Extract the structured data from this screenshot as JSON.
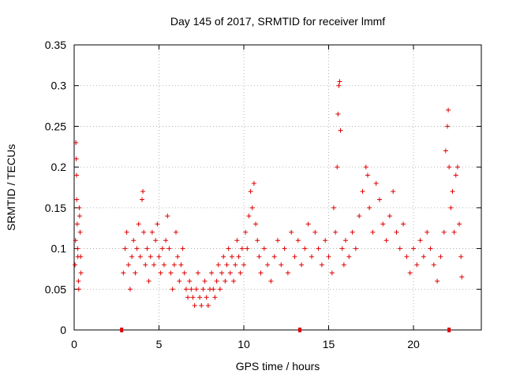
{
  "chart_data": {
    "type": "scatter",
    "title": "Day 145 of 2017, SRMTID for receiver lmmf",
    "xlabel": "GPS time / hours",
    "ylabel": "SRMTID / TECUs",
    "xlim": [
      0,
      24
    ],
    "ylim": [
      0,
      0.35
    ],
    "xticks": [
      0,
      5,
      10,
      15,
      20
    ],
    "xtick_labels": [
      "0",
      "5",
      "10",
      "15",
      "20"
    ],
    "yticks": [
      0,
      0.05,
      0.1,
      0.15,
      0.2,
      0.25,
      0.3,
      0.35
    ],
    "ytick_labels": [
      "0",
      "0.05",
      "0.1",
      "0.15",
      "0.2",
      "0.25",
      "0.3",
      "0.35"
    ],
    "grid": true,
    "marker": "plus",
    "color": "#e00000",
    "series": [
      {
        "name": "SRMTID",
        "points": [
          [
            0.05,
            0.08
          ],
          [
            0.08,
            0.11
          ],
          [
            0.1,
            0.23
          ],
          [
            0.12,
            0.21
          ],
          [
            0.14,
            0.19
          ],
          [
            0.15,
            0.16
          ],
          [
            0.18,
            0.13
          ],
          [
            0.2,
            0.1
          ],
          [
            0.22,
            0.09
          ],
          [
            0.25,
            0.06
          ],
          [
            0.27,
            0.05
          ],
          [
            0.3,
            0.15
          ],
          [
            0.32,
            0.14
          ],
          [
            0.35,
            0.12
          ],
          [
            0.38,
            0.09
          ],
          [
            0.4,
            0.07
          ],
          [
            2.8,
            0.0
          ],
          [
            13.3,
            0.0
          ],
          [
            22.1,
            0.0
          ],
          [
            2.9,
            0.07
          ],
          [
            3.0,
            0.1
          ],
          [
            3.1,
            0.12
          ],
          [
            3.2,
            0.08
          ],
          [
            3.3,
            0.05
          ],
          [
            3.4,
            0.09
          ],
          [
            3.5,
            0.11
          ],
          [
            3.6,
            0.07
          ],
          [
            3.7,
            0.1
          ],
          [
            3.8,
            0.13
          ],
          [
            3.9,
            0.09
          ],
          [
            4.0,
            0.16
          ],
          [
            4.05,
            0.17
          ],
          [
            4.1,
            0.12
          ],
          [
            4.2,
            0.08
          ],
          [
            4.3,
            0.1
          ],
          [
            4.4,
            0.06
          ],
          [
            4.5,
            0.09
          ],
          [
            4.6,
            0.12
          ],
          [
            4.7,
            0.08
          ],
          [
            4.8,
            0.11
          ],
          [
            4.9,
            0.13
          ],
          [
            5.0,
            0.09
          ],
          [
            5.1,
            0.07
          ],
          [
            5.2,
            0.1
          ],
          [
            5.3,
            0.08
          ],
          [
            5.4,
            0.11
          ],
          [
            5.5,
            0.14
          ],
          [
            5.6,
            0.1
          ],
          [
            5.7,
            0.07
          ],
          [
            5.8,
            0.05
          ],
          [
            5.9,
            0.08
          ],
          [
            6.0,
            0.12
          ],
          [
            6.1,
            0.09
          ],
          [
            6.2,
            0.06
          ],
          [
            6.3,
            0.08
          ],
          [
            6.4,
            0.1
          ],
          [
            6.5,
            0.07
          ],
          [
            6.6,
            0.05
          ],
          [
            6.7,
            0.04
          ],
          [
            6.8,
            0.06
          ],
          [
            6.9,
            0.05
          ],
          [
            7.0,
            0.04
          ],
          [
            7.1,
            0.03
          ],
          [
            7.2,
            0.05
          ],
          [
            7.3,
            0.07
          ],
          [
            7.4,
            0.04
          ],
          [
            7.5,
            0.03
          ],
          [
            7.6,
            0.05
          ],
          [
            7.7,
            0.06
          ],
          [
            7.8,
            0.04
          ],
          [
            7.9,
            0.03
          ],
          [
            8.0,
            0.05
          ],
          [
            8.1,
            0.07
          ],
          [
            8.2,
            0.05
          ],
          [
            8.3,
            0.04
          ],
          [
            8.4,
            0.06
          ],
          [
            8.5,
            0.08
          ],
          [
            8.6,
            0.05
          ],
          [
            8.7,
            0.07
          ],
          [
            8.8,
            0.09
          ],
          [
            8.9,
            0.06
          ],
          [
            9.0,
            0.08
          ],
          [
            9.1,
            0.1
          ],
          [
            9.2,
            0.07
          ],
          [
            9.3,
            0.09
          ],
          [
            9.4,
            0.06
          ],
          [
            9.5,
            0.08
          ],
          [
            9.6,
            0.11
          ],
          [
            9.7,
            0.09
          ],
          [
            9.8,
            0.07
          ],
          [
            9.9,
            0.1
          ],
          [
            10.0,
            0.08
          ],
          [
            10.1,
            0.12
          ],
          [
            10.2,
            0.1
          ],
          [
            10.3,
            0.14
          ],
          [
            10.4,
            0.17
          ],
          [
            10.5,
            0.15
          ],
          [
            10.6,
            0.18
          ],
          [
            10.7,
            0.13
          ],
          [
            10.8,
            0.11
          ],
          [
            10.9,
            0.09
          ],
          [
            11.0,
            0.07
          ],
          [
            11.2,
            0.1
          ],
          [
            11.4,
            0.08
          ],
          [
            11.6,
            0.06
          ],
          [
            11.8,
            0.09
          ],
          [
            12.0,
            0.11
          ],
          [
            12.2,
            0.08
          ],
          [
            12.4,
            0.1
          ],
          [
            12.6,
            0.07
          ],
          [
            12.8,
            0.12
          ],
          [
            13.0,
            0.09
          ],
          [
            13.2,
            0.11
          ],
          [
            13.4,
            0.08
          ],
          [
            13.6,
            0.1
          ],
          [
            13.8,
            0.13
          ],
          [
            14.0,
            0.09
          ],
          [
            14.2,
            0.12
          ],
          [
            14.4,
            0.1
          ],
          [
            14.6,
            0.08
          ],
          [
            14.8,
            0.11
          ],
          [
            15.0,
            0.09
          ],
          [
            15.2,
            0.07
          ],
          [
            15.3,
            0.15
          ],
          [
            15.4,
            0.12
          ],
          [
            15.5,
            0.2
          ],
          [
            15.55,
            0.265
          ],
          [
            15.6,
            0.3
          ],
          [
            15.65,
            0.305
          ],
          [
            15.7,
            0.245
          ],
          [
            15.8,
            0.1
          ],
          [
            15.9,
            0.08
          ],
          [
            16.0,
            0.11
          ],
          [
            16.2,
            0.09
          ],
          [
            16.4,
            0.12
          ],
          [
            16.6,
            0.1
          ],
          [
            16.8,
            0.14
          ],
          [
            17.0,
            0.17
          ],
          [
            17.2,
            0.2
          ],
          [
            17.3,
            0.19
          ],
          [
            17.4,
            0.15
          ],
          [
            17.6,
            0.12
          ],
          [
            17.8,
            0.18
          ],
          [
            18.0,
            0.16
          ],
          [
            18.2,
            0.13
          ],
          [
            18.4,
            0.11
          ],
          [
            18.6,
            0.14
          ],
          [
            18.8,
            0.17
          ],
          [
            19.0,
            0.12
          ],
          [
            19.2,
            0.1
          ],
          [
            19.4,
            0.13
          ],
          [
            19.6,
            0.09
          ],
          [
            19.8,
            0.07
          ],
          [
            20.0,
            0.1
          ],
          [
            20.2,
            0.08
          ],
          [
            20.4,
            0.11
          ],
          [
            20.6,
            0.09
          ],
          [
            20.8,
            0.12
          ],
          [
            21.0,
            0.1
          ],
          [
            21.2,
            0.08
          ],
          [
            21.4,
            0.06
          ],
          [
            21.6,
            0.09
          ],
          [
            21.8,
            0.12
          ],
          [
            21.9,
            0.22
          ],
          [
            22.0,
            0.25
          ],
          [
            22.05,
            0.27
          ],
          [
            22.1,
            0.2
          ],
          [
            22.2,
            0.15
          ],
          [
            22.3,
            0.17
          ],
          [
            22.4,
            0.12
          ],
          [
            22.5,
            0.19
          ],
          [
            22.6,
            0.2
          ],
          [
            22.7,
            0.13
          ],
          [
            22.8,
            0.09
          ],
          [
            22.85,
            0.065
          ]
        ]
      }
    ]
  }
}
